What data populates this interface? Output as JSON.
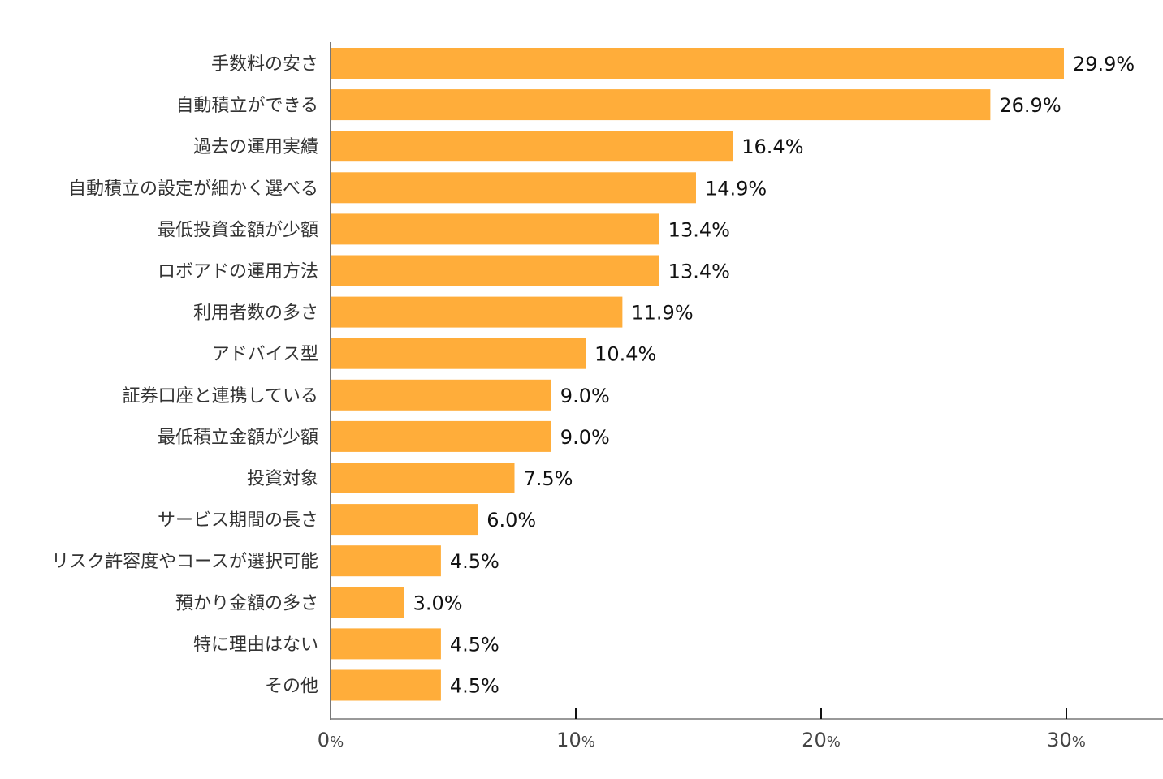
{
  "chart_data": {
    "type": "bar",
    "orientation": "horizontal",
    "categories": [
      "手数料の安さ",
      "自動積立ができる",
      "過去の運用実績",
      "自動積立の設定が細かく選べる",
      "最低投資金額が少額",
      "ロボアドの運用方法",
      "利用者数の多さ",
      "アドバイス型",
      "証券口座と連携している",
      "最低積立金額が少額",
      "投資対象",
      "サービス期間の長さ",
      "リスク許容度やコースが選択可能",
      "預かり金額の多さ",
      "特に理由はない",
      "その他"
    ],
    "values": [
      29.9,
      26.9,
      16.4,
      14.9,
      13.4,
      13.4,
      11.9,
      10.4,
      9.0,
      9.0,
      7.5,
      6.0,
      4.5,
      3.0,
      4.5,
      4.5
    ],
    "data_labels": [
      "29.9%",
      "26.9%",
      "16.4%",
      "14.9%",
      "13.4%",
      "13.4%",
      "11.9%",
      "10.4%",
      "9.0%",
      "9.0%",
      "7.5%",
      "6.0%",
      "4.5%",
      "3.0%",
      "4.5%",
      "4.5%"
    ],
    "xlim": [
      0,
      30
    ],
    "xticks": [
      0,
      10,
      20,
      30
    ],
    "xtick_labels": [
      "0",
      "10",
      "20",
      "30"
    ],
    "xtick_unit": "%",
    "grid": false,
    "legend": "none",
    "bar_color": "#FFAD3A"
  }
}
